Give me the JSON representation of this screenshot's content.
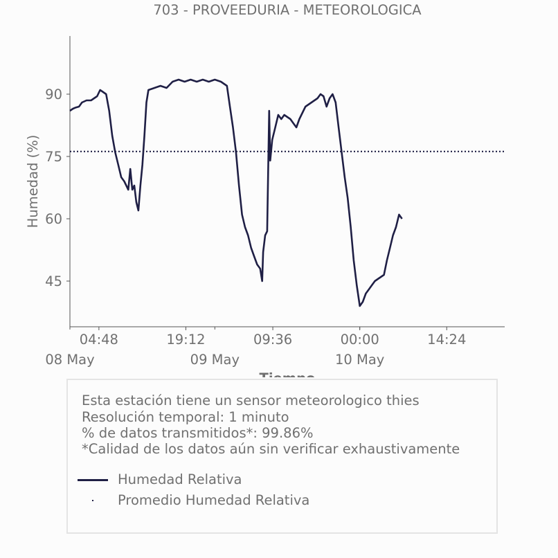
{
  "chart_data": {
    "type": "line",
    "title": "703 - PROVEEDURIA - METEOROLOGICA",
    "xlabel": "Tiempo",
    "ylabel": "Humedad (%)",
    "ylim": [
      34,
      104
    ],
    "xlim": [
      "2024-05-08 00:00",
      "2024-05-11 00:00"
    ],
    "yticks": [
      45,
      60,
      75,
      90
    ],
    "xticks": [
      {
        "time": "2024-05-08 04:48",
        "label": "04:48"
      },
      {
        "time": "2024-05-08 19:12",
        "label": "19:12"
      },
      {
        "time": "2024-05-09 09:36",
        "label": "09:36"
      },
      {
        "time": "2024-05-10 00:00",
        "label": "00:00"
      },
      {
        "time": "2024-05-10 14:24",
        "label": "14:24"
      }
    ],
    "date_ticks": [
      {
        "time": "2024-05-08 00:00",
        "label": "08 May"
      },
      {
        "time": "2024-05-09 00:00",
        "label": "09 May"
      },
      {
        "time": "2024-05-10 00:00",
        "label": "10 May"
      }
    ],
    "grid": false,
    "legend_position": "bottom",
    "series": [
      {
        "name": "Humedad Relativa",
        "style": "solid",
        "color": "#1f1f45",
        "points": [
          [
            "2024-05-08 00:00",
            86
          ],
          [
            "2024-05-08 00:30",
            86.5
          ],
          [
            "2024-05-08 01:00",
            86.8
          ],
          [
            "2024-05-08 01:30",
            87
          ],
          [
            "2024-05-08 02:00",
            88
          ],
          [
            "2024-05-08 02:45",
            88.5
          ],
          [
            "2024-05-08 03:30",
            88.5
          ],
          [
            "2024-05-08 04:00",
            89
          ],
          [
            "2024-05-08 04:30",
            89.5
          ],
          [
            "2024-05-08 05:00",
            91
          ],
          [
            "2024-05-08 05:30",
            90.5
          ],
          [
            "2024-05-08 06:00",
            90
          ],
          [
            "2024-05-08 06:30",
            86
          ],
          [
            "2024-05-08 07:00",
            80
          ],
          [
            "2024-05-08 07:30",
            76
          ],
          [
            "2024-05-08 08:00",
            73
          ],
          [
            "2024-05-08 08:30",
            70
          ],
          [
            "2024-05-08 09:00",
            69
          ],
          [
            "2024-05-08 09:40",
            67
          ],
          [
            "2024-05-08 10:00",
            72
          ],
          [
            "2024-05-08 10:20",
            67
          ],
          [
            "2024-05-08 10:40",
            68
          ],
          [
            "2024-05-08 11:00",
            64
          ],
          [
            "2024-05-08 11:20",
            62
          ],
          [
            "2024-05-08 11:40",
            68
          ],
          [
            "2024-05-08 12:00",
            73
          ],
          [
            "2024-05-08 12:20",
            80
          ],
          [
            "2024-05-08 12:40",
            88
          ],
          [
            "2024-05-08 13:00",
            91
          ],
          [
            "2024-05-08 14:00",
            91.5
          ],
          [
            "2024-05-08 15:00",
            92
          ],
          [
            "2024-05-08 16:00",
            91.5
          ],
          [
            "2024-05-08 17:00",
            93
          ],
          [
            "2024-05-08 18:00",
            93.5
          ],
          [
            "2024-05-08 19:00",
            93
          ],
          [
            "2024-05-08 20:00",
            93.5
          ],
          [
            "2024-05-08 21:00",
            93
          ],
          [
            "2024-05-08 22:00",
            93.5
          ],
          [
            "2024-05-08 23:00",
            93
          ],
          [
            "2024-05-09 00:00",
            93.5
          ],
          [
            "2024-05-09 01:00",
            93
          ],
          [
            "2024-05-09 02:00",
            92
          ],
          [
            "2024-05-09 02:30",
            87
          ],
          [
            "2024-05-09 03:00",
            82
          ],
          [
            "2024-05-09 03:30",
            76
          ],
          [
            "2024-05-09 04:00",
            68
          ],
          [
            "2024-05-09 04:30",
            61
          ],
          [
            "2024-05-09 05:00",
            58
          ],
          [
            "2024-05-09 05:30",
            56
          ],
          [
            "2024-05-09 06:00",
            53
          ],
          [
            "2024-05-09 06:30",
            51
          ],
          [
            "2024-05-09 07:00",
            49
          ],
          [
            "2024-05-09 07:30",
            48
          ],
          [
            "2024-05-09 07:50",
            45
          ],
          [
            "2024-05-09 08:00",
            52
          ],
          [
            "2024-05-09 08:20",
            56
          ],
          [
            "2024-05-09 08:40",
            57
          ],
          [
            "2024-05-09 09:00",
            86
          ],
          [
            "2024-05-09 09:10",
            74
          ],
          [
            "2024-05-09 09:30",
            79
          ],
          [
            "2024-05-09 10:00",
            82
          ],
          [
            "2024-05-09 10:30",
            85
          ],
          [
            "2024-05-09 11:00",
            84
          ],
          [
            "2024-05-09 11:30",
            85
          ],
          [
            "2024-05-09 12:00",
            84.5
          ],
          [
            "2024-05-09 12:30",
            84
          ],
          [
            "2024-05-09 13:00",
            83
          ],
          [
            "2024-05-09 13:30",
            82
          ],
          [
            "2024-05-09 14:00",
            84
          ],
          [
            "2024-05-09 15:00",
            87
          ],
          [
            "2024-05-09 16:00",
            88
          ],
          [
            "2024-05-09 17:00",
            89
          ],
          [
            "2024-05-09 17:30",
            90
          ],
          [
            "2024-05-09 18:00",
            89.5
          ],
          [
            "2024-05-09 18:30",
            87
          ],
          [
            "2024-05-09 19:00",
            89
          ],
          [
            "2024-05-09 19:30",
            90
          ],
          [
            "2024-05-09 20:00",
            88
          ],
          [
            "2024-05-09 20:30",
            82
          ],
          [
            "2024-05-09 21:00",
            76
          ],
          [
            "2024-05-09 21:30",
            70
          ],
          [
            "2024-05-09 22:00",
            65
          ],
          [
            "2024-05-09 22:30",
            58
          ],
          [
            "2024-05-09 23:00",
            50
          ],
          [
            "2024-05-09 23:30",
            44
          ],
          [
            "2024-05-10 00:00",
            39
          ],
          [
            "2024-05-10 00:30",
            40
          ],
          [
            "2024-05-10 01:00",
            42
          ],
          [
            "2024-05-10 01:30",
            43
          ],
          [
            "2024-05-10 02:00",
            44
          ],
          [
            "2024-05-10 02:30",
            45
          ],
          [
            "2024-05-10 03:00",
            45.5
          ],
          [
            "2024-05-10 03:30",
            46
          ],
          [
            "2024-05-10 04:00",
            46.5
          ],
          [
            "2024-05-10 04:30",
            50
          ],
          [
            "2024-05-10 05:00",
            53
          ],
          [
            "2024-05-10 05:30",
            56
          ],
          [
            "2024-05-10 06:00",
            58
          ],
          [
            "2024-05-10 06:30",
            61
          ],
          [
            "2024-05-10 07:00",
            60
          ]
        ]
      },
      {
        "name": "Promedio Humedad Relativa",
        "style": "dotted",
        "color": "#1f1f45",
        "value": 76.2
      }
    ]
  },
  "info": {
    "line1": "Esta estación tiene un sensor meteorologico thies",
    "line2": "Resolución temporal: 1 minuto",
    "line3": "% de datos transmitidos*: 99.86%",
    "line4": "*Calidad de los datos aún sin verificar exhaustivamente"
  },
  "legend": {
    "item1": "Humedad Relativa",
    "item2": "Promedio Humedad Relativa"
  }
}
